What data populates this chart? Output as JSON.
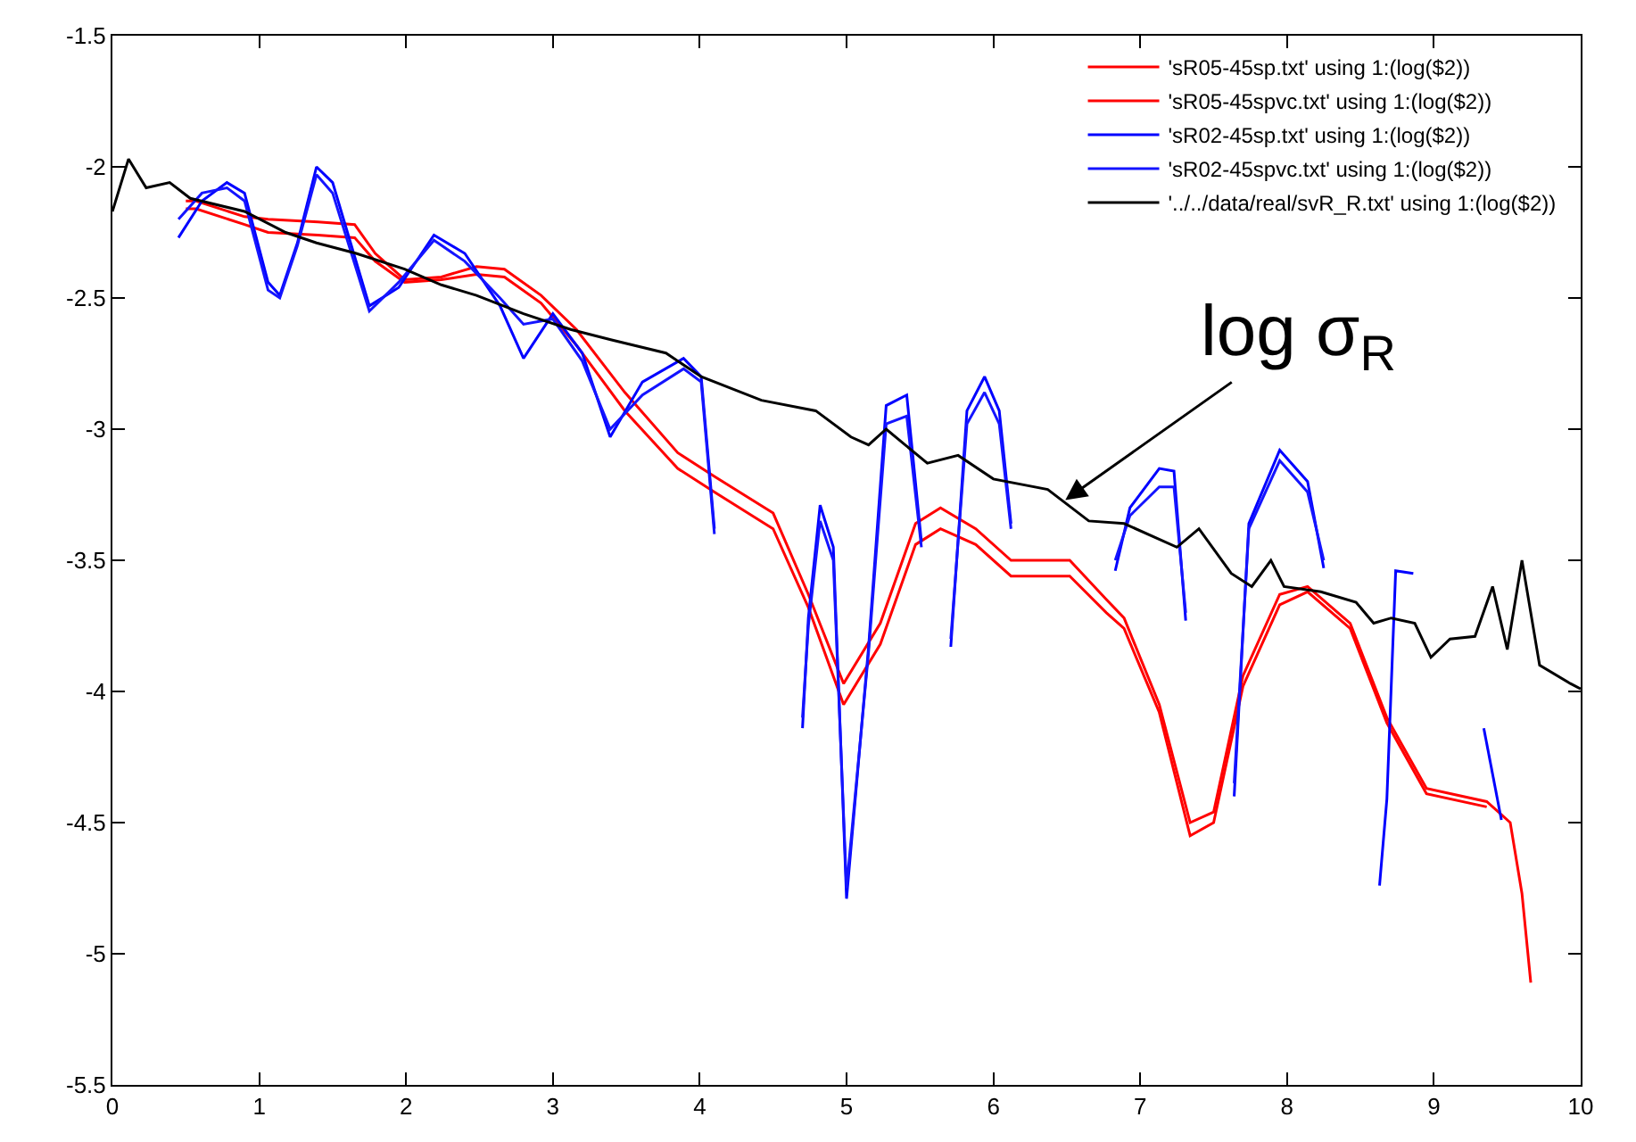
{
  "chart_data": {
    "type": "line",
    "xlim": [
      0,
      10
    ],
    "ylim": [
      -5.5,
      -1.5
    ],
    "xticks": [
      0,
      1,
      2,
      3,
      4,
      5,
      6,
      7,
      8,
      9,
      10
    ],
    "yticks": [
      -5.5,
      -5,
      -4.5,
      -4,
      -3.5,
      -3,
      -2.5,
      -2,
      -1.5
    ],
    "grid": false,
    "legend": "top right",
    "annotations": [
      {
        "text": "log σ$_{R}$",
        "x": 6.49,
        "y": -3.27
      }
    ],
    "series": [
      {
        "name": "'sR05-45sp.txt' using 1:(log($2))",
        "color": "#ff0000",
        "x": [
          0.5,
          0.57,
          0.9,
          1.06,
          1.4,
          1.65,
          1.79,
          1.99,
          2.24,
          2.48,
          2.67,
          2.92,
          3.16,
          3.49,
          3.85,
          4.1,
          4.5,
          4.74,
          4.98,
          5.23,
          5.47,
          5.64,
          5.88,
          6.12,
          6.52,
          6.77,
          6.89,
          7.13,
          7.34,
          7.5,
          7.7,
          7.95,
          8.14,
          8.43,
          8.68,
          8.95,
          9.36,
          9.52,
          9.6,
          9.66
        ],
        "values": [
          -2.13,
          -2.13,
          -2.19,
          -2.2,
          -2.21,
          -2.22,
          -2.33,
          -2.43,
          -2.42,
          -2.38,
          -2.39,
          -2.49,
          -2.62,
          -2.86,
          -3.09,
          -3.18,
          -3.32,
          -3.63,
          -3.97,
          -3.74,
          -3.36,
          -3.3,
          -3.38,
          -3.5,
          -3.5,
          -3.65,
          -3.72,
          -4.05,
          -4.5,
          -4.46,
          -3.94,
          -3.63,
          -3.6,
          -3.74,
          -4.1,
          -4.37,
          -4.42,
          -4.5,
          -4.77,
          -5.11
        ]
      },
      {
        "name": "'sR05-45spvc.txt' using 1:(log($2))",
        "color": "#ff0000",
        "x": [
          0.5,
          0.57,
          0.9,
          1.06,
          1.4,
          1.65,
          1.79,
          1.99,
          2.24,
          2.48,
          2.67,
          2.92,
          3.16,
          3.49,
          3.85,
          4.1,
          4.5,
          4.74,
          4.98,
          5.23,
          5.47,
          5.64,
          5.88,
          6.12,
          6.52,
          6.77,
          6.89,
          7.13,
          7.34,
          7.5,
          7.7,
          7.95,
          8.14,
          8.43,
          8.68,
          8.95,
          9.36
        ],
        "values": [
          -2.16,
          -2.16,
          -2.22,
          -2.25,
          -2.26,
          -2.27,
          -2.36,
          -2.44,
          -2.43,
          -2.41,
          -2.42,
          -2.52,
          -2.68,
          -2.93,
          -3.15,
          -3.24,
          -3.38,
          -3.68,
          -4.05,
          -3.82,
          -3.44,
          -3.38,
          -3.44,
          -3.56,
          -3.56,
          -3.7,
          -3.76,
          -4.08,
          -4.55,
          -4.5,
          -3.98,
          -3.67,
          -3.62,
          -3.76,
          -4.12,
          -4.39,
          -4.44
        ]
      },
      {
        "name": "'sR02-45sp.txt' using 1:(log($2))",
        "color": "#0000ff",
        "x": [
          0.45,
          0.61,
          0.78,
          0.9,
          1.06,
          1.14,
          1.26,
          1.39,
          1.5,
          1.75,
          1.95,
          2.19,
          2.4,
          2.64,
          2.8,
          3.0,
          3.2,
          3.39,
          3.61,
          3.89,
          4.01,
          4.1,
          4.4,
          4.7,
          4.74,
          4.82,
          4.91,
          5.0,
          5.15,
          5.27,
          5.41,
          5.51,
          5.6,
          5.71,
          5.82,
          5.94,
          6.04,
          6.12,
          6.5,
          6.83,
          6.93,
          7.13,
          7.23,
          7.31,
          7.5,
          7.64,
          7.74,
          7.95,
          8.14,
          8.25,
          8.45,
          8.63,
          8.68,
          8.74,
          8.86,
          9.1,
          9.34,
          9.46
        ],
        "values": [
          -2.27,
          -2.13,
          -2.06,
          -2.1,
          -2.44,
          -2.49,
          -2.29,
          -2.0,
          -2.06,
          -2.53,
          -2.46,
          -2.26,
          -2.33,
          -2.53,
          -2.73,
          -2.56,
          -2.71,
          -3.03,
          -2.82,
          -2.73,
          -2.8,
          -3.38,
          null,
          -4.14,
          -3.72,
          -3.29,
          -3.45,
          -4.79,
          -3.83,
          -2.91,
          -2.87,
          -3.43,
          null,
          -3.83,
          -2.93,
          -2.8,
          -2.93,
          -3.36,
          null,
          -3.54,
          -3.3,
          -3.15,
          -3.16,
          -3.73,
          null,
          -4.4,
          -3.36,
          -3.08,
          -3.2,
          -3.53,
          null,
          -4.74,
          -4.41,
          -3.54,
          -3.55,
          null,
          -4.14,
          -4.49
        ]
      },
      {
        "name": "'sR02-45spvc.txt' using 1:(log($2))",
        "color": "#1414ff",
        "x": [
          0.45,
          0.61,
          0.78,
          0.9,
          1.06,
          1.14,
          1.26,
          1.39,
          1.5,
          1.75,
          1.95,
          2.19,
          2.4,
          2.64,
          2.8,
          3.0,
          3.2,
          3.39,
          3.61,
          3.89,
          4.01,
          4.1,
          4.4,
          4.7,
          4.74,
          4.82,
          4.91,
          5.0,
          5.15,
          5.27,
          5.41,
          5.51,
          5.6,
          5.71,
          5.82,
          5.94,
          6.04,
          6.12,
          6.5,
          6.83,
          6.93,
          7.13,
          7.23,
          7.31,
          7.5,
          7.64,
          7.74,
          7.95,
          8.14,
          8.25
        ],
        "values": [
          -2.2,
          -2.1,
          -2.08,
          -2.13,
          -2.47,
          -2.5,
          -2.3,
          -2.03,
          -2.1,
          -2.55,
          -2.44,
          -2.28,
          -2.36,
          -2.5,
          -2.6,
          -2.58,
          -2.74,
          -3.0,
          -2.87,
          -2.77,
          -2.82,
          -3.4,
          null,
          -4.1,
          -3.75,
          -3.35,
          -3.5,
          -4.75,
          -3.85,
          -2.98,
          -2.95,
          -3.45,
          null,
          -3.8,
          -2.98,
          -2.86,
          -2.98,
          -3.38,
          null,
          -3.5,
          -3.33,
          -3.22,
          -3.22,
          -3.7,
          null,
          -4.35,
          -3.38,
          -3.12,
          -3.24,
          -3.5
        ]
      },
      {
        "name": "'../../data/real/svR_R.txt' using 1:(log($2))",
        "color": "#000000",
        "x": [
          0,
          0.11,
          0.23,
          0.39,
          0.53,
          0.9,
          1.18,
          1.39,
          1.66,
          1.99,
          2.24,
          2.48,
          2.8,
          3.12,
          3.4,
          3.77,
          4.01,
          4.42,
          4.79,
          5.03,
          5.15,
          5.27,
          5.55,
          5.76,
          6.0,
          6.37,
          6.65,
          6.89,
          7.25,
          7.4,
          7.62,
          7.76,
          7.89,
          7.98,
          8.23,
          8.47,
          8.59,
          8.71,
          8.87,
          8.98,
          9.11,
          9.28,
          9.4,
          9.5,
          9.6,
          9.72,
          9.93,
          10
        ],
        "values": [
          -2.17,
          -1.97,
          -2.08,
          -2.06,
          -2.12,
          -2.17,
          -2.25,
          -2.29,
          -2.33,
          -2.39,
          -2.45,
          -2.49,
          -2.56,
          -2.62,
          -2.66,
          -2.71,
          -2.8,
          -2.89,
          -2.93,
          -3.03,
          -3.06,
          -3.0,
          -3.13,
          -3.1,
          -3.19,
          -3.23,
          -3.35,
          -3.36,
          -3.45,
          -3.38,
          -3.55,
          -3.6,
          -3.5,
          -3.6,
          -3.62,
          -3.66,
          -3.74,
          -3.72,
          -3.74,
          -3.87,
          -3.8,
          -3.79,
          -3.6,
          -3.84,
          -3.5,
          -3.9,
          -3.97,
          -3.99
        ]
      }
    ]
  }
}
